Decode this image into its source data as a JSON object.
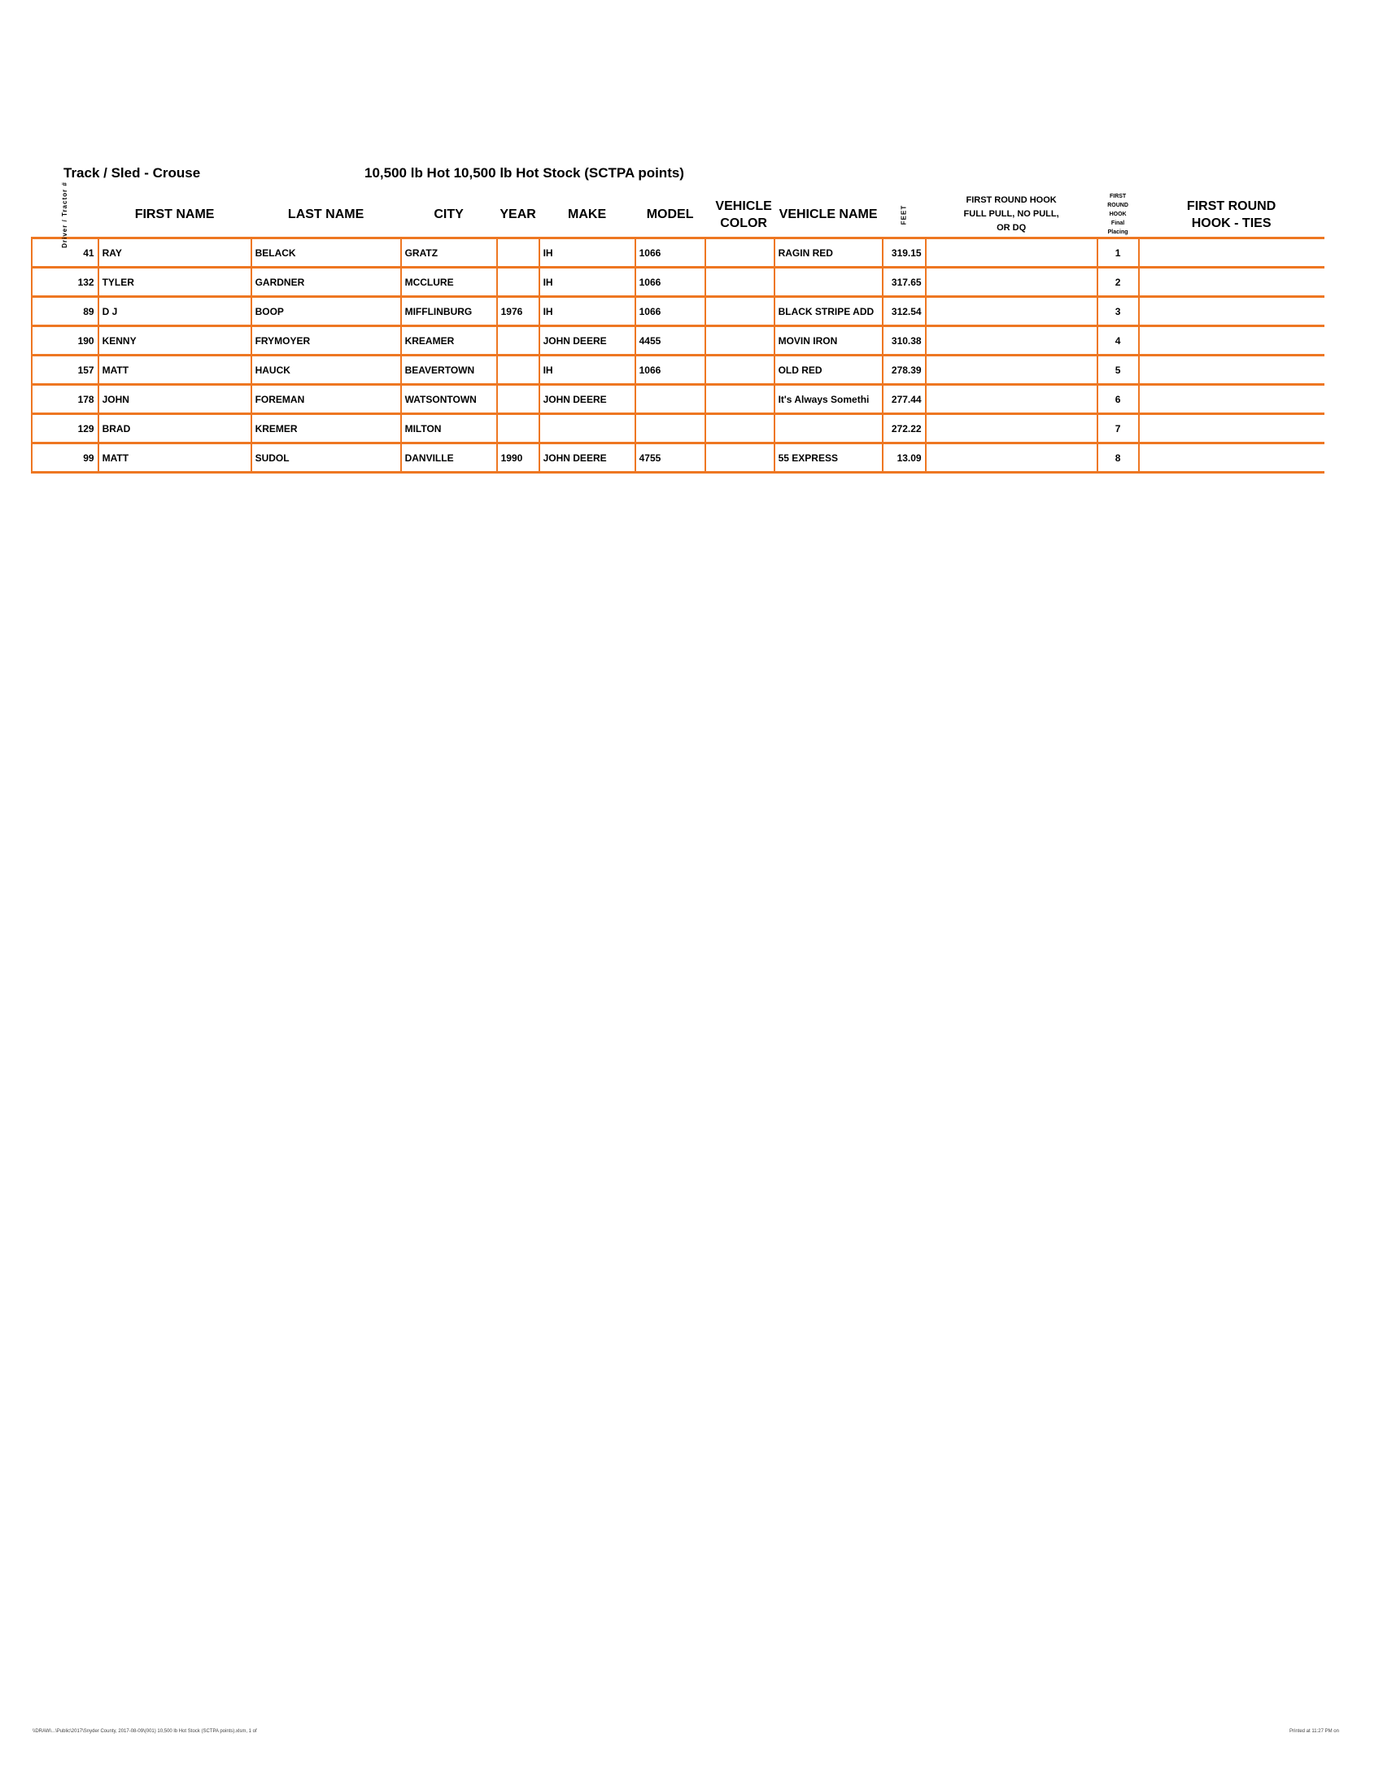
{
  "header": {
    "track_sled": "Track / Sled - Crouse",
    "class_title": "10,500 lb Hot 10,500 lb Hot Stock (SCTPA points)"
  },
  "columns": {
    "number": "Driver / Tractor #",
    "first": "FIRST NAME",
    "last": "LAST NAME",
    "city": "CITY",
    "year": "YEAR",
    "make": "MAKE",
    "model": "MODEL",
    "color": "VEHICLE COLOR",
    "vname": "VEHICLE NAME",
    "feet": "FEET",
    "hook": "FIRST ROUND HOOK FULL PULL, NO PULL, OR DQ",
    "placing": "FIRST ROUND HOOK Final Placing",
    "ties": "FIRST ROUND HOOK - TIES"
  },
  "rows": [
    {
      "number": "41",
      "first": "RAY",
      "last": "BELACK",
      "city": "GRATZ",
      "year": "",
      "make": "IH",
      "model": "1066",
      "color": "",
      "vname": "RAGIN RED",
      "feet": "319.15",
      "hook": "",
      "placing": "1",
      "ties": ""
    },
    {
      "number": "132",
      "first": "TYLER",
      "last": "GARDNER",
      "city": "MCCLURE",
      "year": "",
      "make": "IH",
      "model": "1066",
      "color": "",
      "vname": "",
      "feet": "317.65",
      "hook": "",
      "placing": "2",
      "ties": ""
    },
    {
      "number": "89",
      "first": "D J",
      "last": "BOOP",
      "city": "MIFFLINBURG",
      "year": "1976",
      "make": "IH",
      "model": "1066",
      "color": "",
      "vname": "BLACK STRIPE ADD",
      "feet": "312.54",
      "hook": "",
      "placing": "3",
      "ties": ""
    },
    {
      "number": "190",
      "first": "KENNY",
      "last": "FRYMOYER",
      "city": "KREAMER",
      "year": "",
      "make": "JOHN DEERE",
      "model": "4455",
      "color": "",
      "vname": "MOVIN IRON",
      "feet": "310.38",
      "hook": "",
      "placing": "4",
      "ties": ""
    },
    {
      "number": "157",
      "first": "MATT",
      "last": "HAUCK",
      "city": "BEAVERTOWN",
      "year": "",
      "make": "IH",
      "model": "1066",
      "color": "",
      "vname": "OLD RED",
      "feet": "278.39",
      "hook": "",
      "placing": "5",
      "ties": ""
    },
    {
      "number": "178",
      "first": "JOHN",
      "last": "FOREMAN",
      "city": "WATSONTOWN",
      "year": "",
      "make": "JOHN DEERE",
      "model": "",
      "color": "",
      "vname": "It's Always Somethi",
      "feet": "277.44",
      "hook": "",
      "placing": "6",
      "ties": ""
    },
    {
      "number": "129",
      "first": "BRAD",
      "last": "KREMER",
      "city": "MILTON",
      "year": "",
      "make": "",
      "model": "",
      "color": "",
      "vname": "",
      "feet": "272.22",
      "hook": "",
      "placing": "7",
      "ties": ""
    },
    {
      "number": "99",
      "first": "MATT",
      "last": "SUDOL",
      "city": "DANVILLE",
      "year": "1990",
      "make": "JOHN DEERE",
      "model": "4755",
      "color": "",
      "vname": "55 EXPRESS",
      "feet": "13.09",
      "hook": "",
      "placing": "8",
      "ties": ""
    }
  ],
  "footer": {
    "path": "\\\\DRAW\\...\\Public\\2017\\Snyder County, 2017-08-09\\(001) 10,500 lb Hot Stock (SCTPA points).xlsm, 1 of",
    "printed": "Printed at 11:27 PM on"
  },
  "colors": {
    "grid": "#ee7722"
  }
}
